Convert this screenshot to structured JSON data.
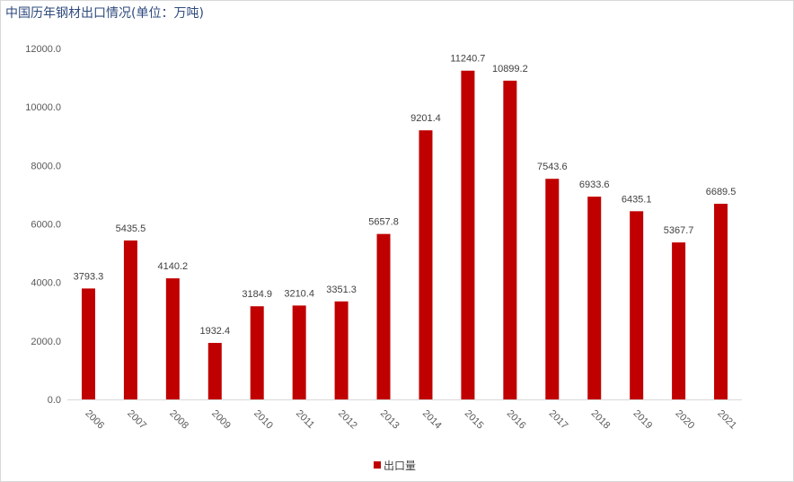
{
  "title": "中国历年钢材出口情况(单位：万吨)",
  "colors": {
    "bar": "#c00000",
    "axis": "#d9d9d9",
    "title": "#2e4a7d"
  },
  "chart_data": {
    "type": "bar",
    "categories": [
      "2006",
      "2007",
      "2008",
      "2009",
      "2010",
      "2011",
      "2012",
      "2013",
      "2014",
      "2015",
      "2016",
      "2017",
      "2018",
      "2019",
      "2020",
      "2021"
    ],
    "series": [
      {
        "name": "出口量",
        "values": [
          3793.3,
          5435.5,
          4140.2,
          1932.4,
          3184.9,
          3210.4,
          3351.3,
          5657.8,
          9201.4,
          11240.7,
          10899.2,
          7543.6,
          6933.6,
          6435.1,
          5367.7,
          6689.5
        ],
        "labels": [
          "3793.3",
          "5435.5",
          "4140.2",
          "1932.4",
          "3184.9",
          "3210.4",
          "3351.3",
          "5657.8",
          "9201.4",
          "11240.7",
          "10899.2",
          "7543.6",
          "6933.6",
          "6435.1",
          "5367.7",
          "6689.5"
        ]
      }
    ],
    "yticks": [
      "0.0",
      "2000.0",
      "4000.0",
      "6000.0",
      "8000.0",
      "10000.0",
      "12000.0"
    ],
    "ytick_values": [
      0,
      2000,
      4000,
      6000,
      8000,
      10000,
      12000
    ],
    "ylim": [
      0,
      12000
    ],
    "grid": false,
    "legend_position": "bottom"
  }
}
